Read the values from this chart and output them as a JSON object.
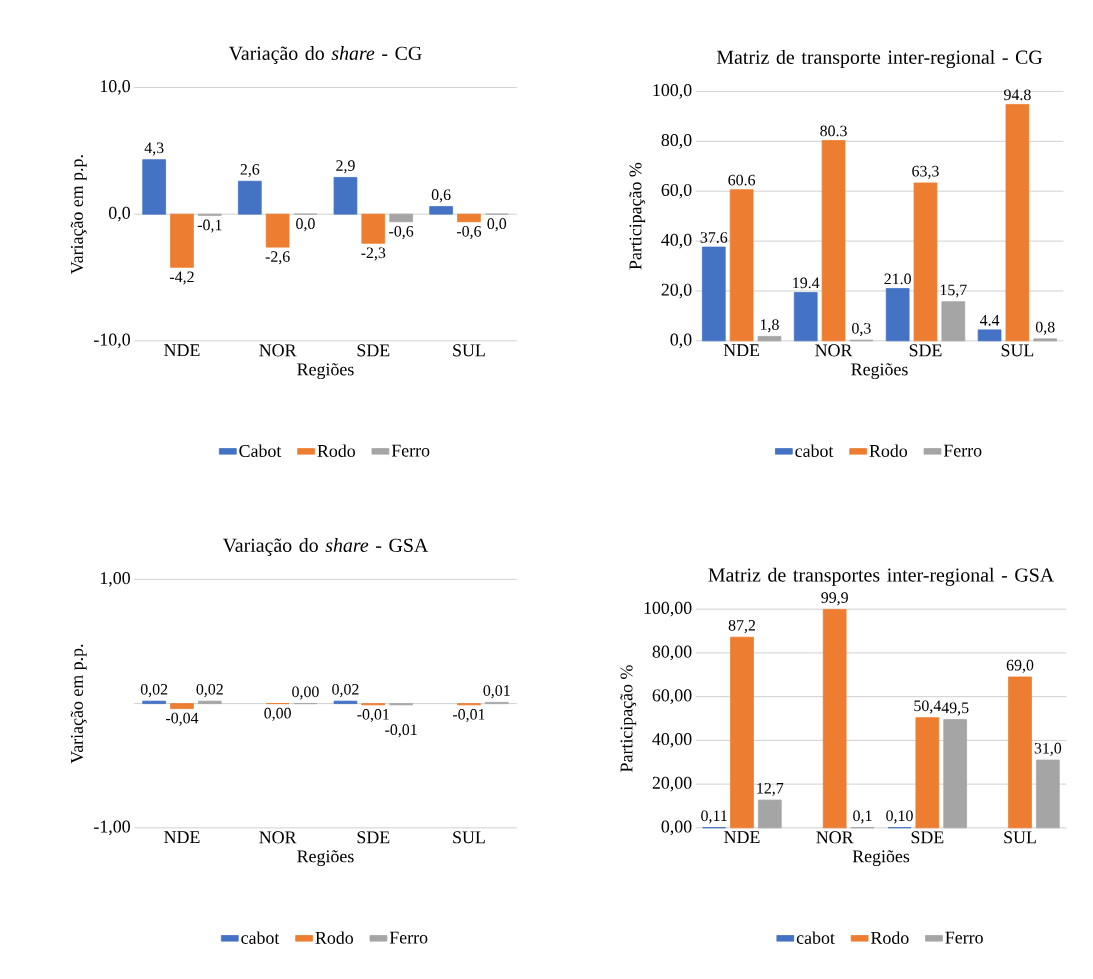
{
  "chart_data": [
    {
      "type": "bar",
      "title": "Variação do *share* - CG",
      "xlabel": "Regiões",
      "ylabel": "Variação em p.p.",
      "categories": [
        "NDE",
        "NOR",
        "SDE",
        "SUL"
      ],
      "ylim": [
        -10,
        10
      ],
      "yticks": [
        {
          "value": -10,
          "label": "-10,0"
        },
        {
          "value": 0,
          "label": "0,0"
        },
        {
          "value": 10,
          "label": "10,0"
        }
      ],
      "grid": "y",
      "legend": "bottom",
      "series": [
        {
          "name": "Cabot",
          "color": "#4472c4",
          "values": [
            4.3,
            2.6,
            2.9,
            0.6
          ],
          "value_labels": [
            "4,3",
            "2,6",
            "2,9",
            "0,6"
          ]
        },
        {
          "name": "Rodo",
          "color": "#ed7d31",
          "values": [
            -4.2,
            -2.6,
            -2.3,
            -0.6
          ],
          "value_labels": [
            "-4,2",
            "-2,6",
            "-2,3",
            "-0,6"
          ]
        },
        {
          "name": "Ferro",
          "color": "#a5a5a5",
          "values": [
            -0.1,
            0.0,
            -0.6,
            0.0
          ],
          "value_labels": [
            "-0,1",
            "0,0",
            "-0,6",
            "0,0"
          ]
        }
      ]
    },
    {
      "type": "bar",
      "title": "Matriz de transporte inter-regional - CG",
      "xlabel": "Regiões",
      "ylabel": "Participação %",
      "categories": [
        "NDE",
        "NOR",
        "SDE",
        "SUL"
      ],
      "ylim": [
        0,
        100
      ],
      "yticks": [
        {
          "value": 0,
          "label": "0,0"
        },
        {
          "value": 20,
          "label": "20,0"
        },
        {
          "value": 40,
          "label": "40,0"
        },
        {
          "value": 60,
          "label": "60,0"
        },
        {
          "value": 80,
          "label": "80,0"
        },
        {
          "value": 100,
          "label": "100,0"
        }
      ],
      "grid": "y",
      "legend": "bottom",
      "series": [
        {
          "name": "cabot",
          "color": "#4472c4",
          "values": [
            37.6,
            19.4,
            21.0,
            4.4
          ],
          "value_labels": [
            "37.6",
            "19.4",
            "21.0",
            "4.4"
          ]
        },
        {
          "name": "Rodo",
          "color": "#ed7d31",
          "values": [
            60.6,
            80.3,
            63.3,
            94.8
          ],
          "value_labels": [
            "60.6",
            "80.3",
            "63,3",
            "94.8"
          ]
        },
        {
          "name": "Ferro",
          "color": "#a5a5a5",
          "values": [
            1.8,
            0.3,
            15.7,
            0.8
          ],
          "value_labels": [
            "1,8",
            "0,3",
            "15,7",
            "0,8"
          ]
        }
      ]
    },
    {
      "type": "bar",
      "title": "Variação do *share* - GSA",
      "xlabel": "Regiões",
      "ylabel": "Variação em p.p.",
      "categories": [
        "NDE",
        "NOR",
        "SDE",
        "SUL"
      ],
      "ylim": [
        -1,
        1
      ],
      "yticks": [
        {
          "value": -1,
          "label": "-1,00"
        },
        {
          "value": 0,
          "label": null
        },
        {
          "value": 1,
          "label": "1,00"
        }
      ],
      "grid": "y",
      "legend": "bottom",
      "series": [
        {
          "name": "cabot",
          "color": "#4472c4",
          "values": [
            0.02,
            null,
            0.02,
            null
          ],
          "value_labels": [
            "0,02",
            null,
            "0,02",
            null
          ]
        },
        {
          "name": "Rodo",
          "color": "#ed7d31",
          "values": [
            -0.04,
            0.0,
            -0.01,
            -0.01
          ],
          "value_labels": [
            "-0,04",
            "0,00",
            "-0,01",
            "-0,01"
          ]
        },
        {
          "name": "Ferro",
          "color": "#a5a5a5",
          "values": [
            0.02,
            0.0,
            -0.01,
            0.01
          ],
          "value_labels": [
            "0,02",
            "0,00",
            "-0,01",
            "0,01"
          ]
        }
      ]
    },
    {
      "type": "bar",
      "title": "Matriz de transportes inter-regional - GSA",
      "xlabel": "Regiões",
      "ylabel": "Participação %",
      "categories": [
        "NDE",
        "NOR",
        "SDE",
        "SUL"
      ],
      "ylim": [
        0,
        100
      ],
      "yticks": [
        {
          "value": 0,
          "label": "0,00"
        },
        {
          "value": 20,
          "label": "20,00"
        },
        {
          "value": 40,
          "label": "40,00"
        },
        {
          "value": 60,
          "label": "60,00"
        },
        {
          "value": 80,
          "label": "80,00"
        },
        {
          "value": 100,
          "label": "100,00"
        }
      ],
      "grid": "y",
      "legend": "bottom",
      "series": [
        {
          "name": "cabot",
          "color": "#4472c4",
          "values": [
            0.11,
            null,
            0.1,
            null
          ],
          "value_labels": [
            "0,11",
            null,
            "0,10",
            null
          ]
        },
        {
          "name": "Rodo",
          "color": "#ed7d31",
          "values": [
            87.2,
            99.9,
            50.4,
            69.0
          ],
          "value_labels": [
            "87,2",
            "99,9",
            "50,4",
            "69,0"
          ]
        },
        {
          "name": "Ferro",
          "color": "#a5a5a5",
          "values": [
            12.7,
            0.1,
            49.5,
            31.0
          ],
          "value_labels": [
            "12,7",
            "0,1",
            "49,5",
            "31,0"
          ]
        }
      ]
    }
  ]
}
